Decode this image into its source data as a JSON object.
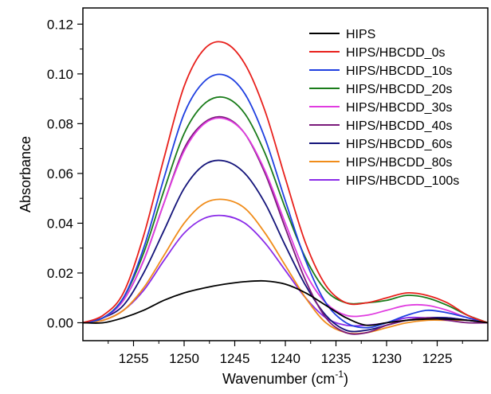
{
  "chart_data": {
    "type": "line",
    "title": "",
    "xlabel": "Wavenumber (cm",
    "xlabel_sup": "-1",
    "xlabel_close": ")",
    "ylabel": "Absorbance",
    "xlim": [
      1260,
      1220
    ],
    "ylim": [
      -0.0072,
      0.1265
    ],
    "x_reversed": true,
    "xticks": [
      1255,
      1250,
      1245,
      1240,
      1235,
      1230,
      1225
    ],
    "yticks": [
      0.0,
      0.02,
      0.04,
      0.06,
      0.08,
      0.1,
      0.12
    ],
    "ytick_labels": [
      "0.00",
      "0.02",
      "0.04",
      "0.06",
      "0.08",
      "0.10",
      "0.12"
    ],
    "grid": false,
    "legend_position": "top-right",
    "x": [
      1260,
      1258,
      1256,
      1254,
      1252,
      1250,
      1248,
      1246,
      1244,
      1242,
      1240,
      1238,
      1236,
      1234,
      1232,
      1230,
      1228,
      1226,
      1224,
      1222,
      1220
    ],
    "series": [
      {
        "name": "HIPS",
        "color": "#000000",
        "values": [
          0.0,
          0.0,
          0.002,
          0.005,
          0.009,
          0.012,
          0.014,
          0.0155,
          0.0165,
          0.0168,
          0.0155,
          0.012,
          0.007,
          0.002,
          -0.001,
          0.0,
          0.001,
          0.0015,
          0.0015,
          0.001,
          0.0
        ]
      },
      {
        "name": "HIPS/HBCDD_0s",
        "color": "#e8201c",
        "values": [
          0.0,
          0.003,
          0.012,
          0.035,
          0.066,
          0.095,
          0.11,
          0.1125,
          0.104,
          0.085,
          0.058,
          0.032,
          0.015,
          0.008,
          0.008,
          0.01,
          0.012,
          0.011,
          0.008,
          0.003,
          0.0
        ]
      },
      {
        "name": "HIPS/HBCDD_10s",
        "color": "#1f3fe0",
        "values": [
          0.0,
          0.002,
          0.01,
          0.03,
          0.058,
          0.084,
          0.097,
          0.0995,
          0.092,
          0.074,
          0.049,
          0.025,
          0.008,
          0.0,
          -0.002,
          0.0,
          0.003,
          0.005,
          0.004,
          0.002,
          0.0
        ]
      },
      {
        "name": "HIPS/HBCDD_20s",
        "color": "#1a7c1a",
        "values": [
          0.0,
          0.002,
          0.01,
          0.028,
          0.053,
          0.076,
          0.088,
          0.0905,
          0.084,
          0.068,
          0.046,
          0.026,
          0.013,
          0.008,
          0.008,
          0.009,
          0.011,
          0.01,
          0.007,
          0.003,
          0.0
        ]
      },
      {
        "name": "HIPS/HBCDD_30s",
        "color": "#e03ce0",
        "values": [
          0.0,
          0.002,
          0.009,
          0.025,
          0.048,
          0.069,
          0.08,
          0.082,
          0.076,
          0.061,
          0.04,
          0.02,
          0.008,
          0.003,
          0.003,
          0.005,
          0.007,
          0.007,
          0.005,
          0.002,
          0.0
        ]
      },
      {
        "name": "HIPS/HBCDD_40s",
        "color": "#7a1a7a",
        "values": [
          0.0,
          0.002,
          0.009,
          0.025,
          0.048,
          0.07,
          0.0805,
          0.0825,
          0.076,
          0.06,
          0.038,
          0.017,
          0.002,
          -0.004,
          -0.004,
          -0.001,
          0.001,
          0.002,
          0.001,
          0.0,
          0.0
        ]
      },
      {
        "name": "HIPS/HBCDD_60s",
        "color": "#14147a",
        "values": [
          0.0,
          0.002,
          0.007,
          0.02,
          0.037,
          0.054,
          0.0635,
          0.065,
          0.06,
          0.048,
          0.031,
          0.015,
          0.003,
          -0.003,
          -0.003,
          -0.001,
          0.001,
          0.002,
          0.002,
          0.001,
          0.0
        ]
      },
      {
        "name": "HIPS/HBCDD_80s",
        "color": "#f08c1a",
        "values": [
          0.0,
          0.001,
          0.005,
          0.014,
          0.027,
          0.04,
          0.048,
          0.0495,
          0.046,
          0.036,
          0.023,
          0.01,
          0.0,
          -0.004,
          -0.004,
          -0.002,
          0.0,
          0.001,
          0.001,
          0.001,
          0.0
        ]
      },
      {
        "name": "HIPS/HBCDD_100s",
        "color": "#8a2be8",
        "values": [
          0.0,
          0.001,
          0.005,
          0.013,
          0.025,
          0.036,
          0.042,
          0.043,
          0.04,
          0.032,
          0.021,
          0.01,
          0.002,
          -0.001,
          -0.001,
          0.0,
          0.002,
          0.002,
          0.002,
          0.001,
          0.0
        ]
      }
    ]
  }
}
